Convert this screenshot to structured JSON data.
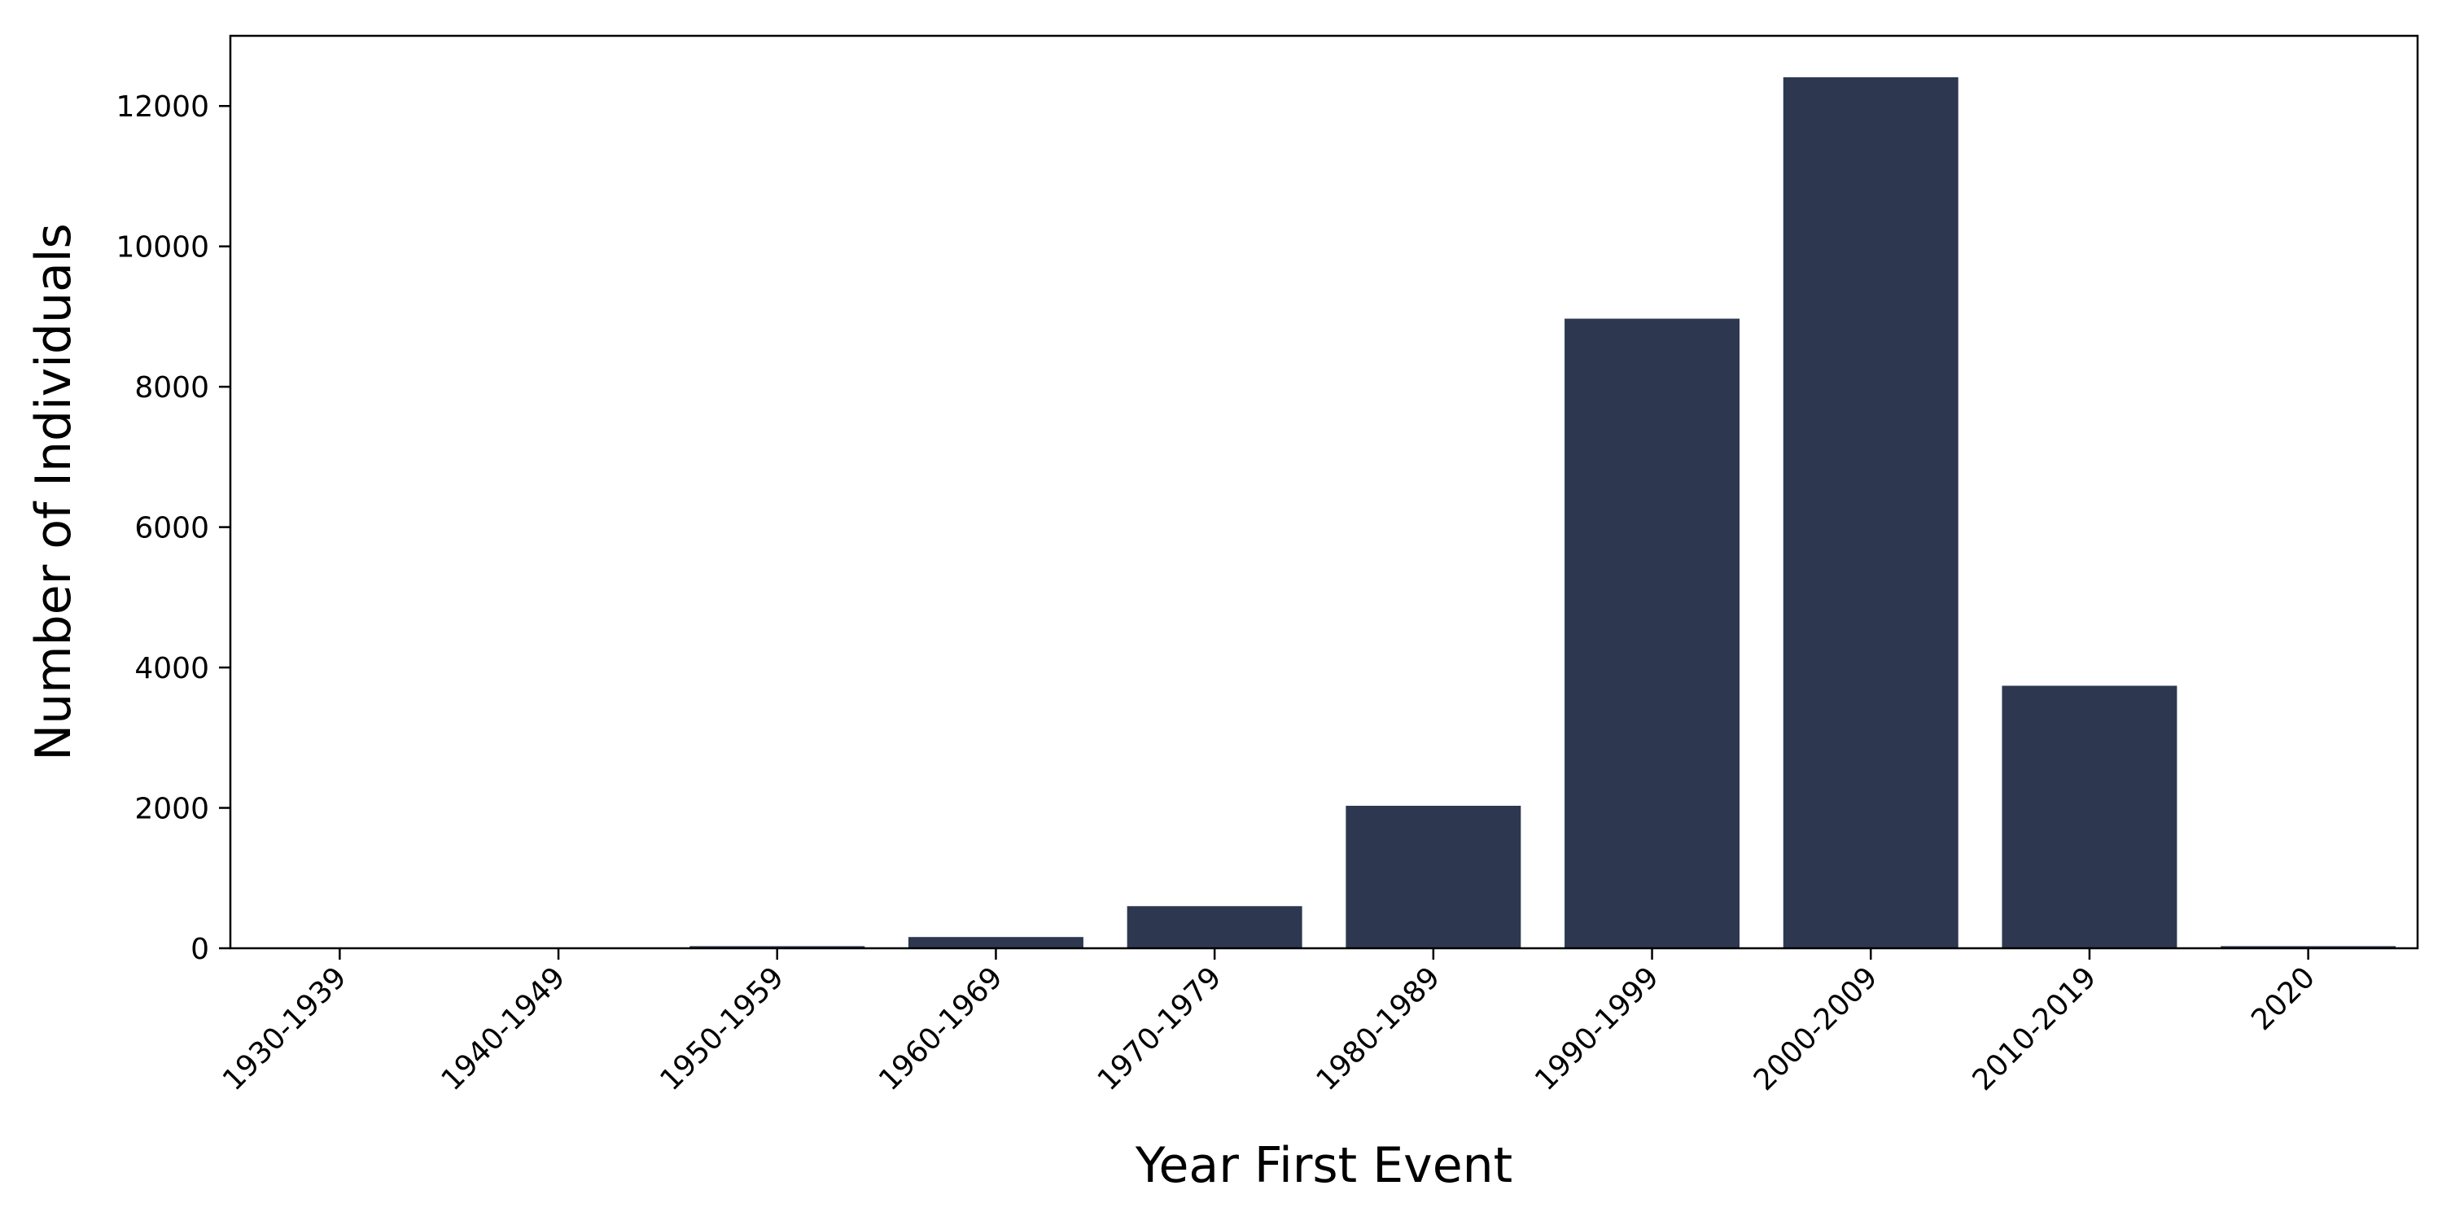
{
  "chart_data": {
    "type": "bar",
    "title": "",
    "xlabel": "Year First Event",
    "ylabel": "Number of Individuals",
    "categories": [
      "1930-1939",
      "1940-1949",
      "1950-1959",
      "1960-1969",
      "1970-1979",
      "1980-1989",
      "1990-1999",
      "2000-2009",
      "2010-2019",
      "2020"
    ],
    "values": [
      2,
      4,
      30,
      160,
      600,
      2030,
      8970,
      12410,
      3740,
      30
    ],
    "ylim": [
      0,
      13000
    ],
    "yticks": [
      0,
      2000,
      4000,
      6000,
      8000,
      10000,
      12000
    ],
    "bar_color": "#2d3850",
    "grid": false,
    "legend": "none"
  }
}
